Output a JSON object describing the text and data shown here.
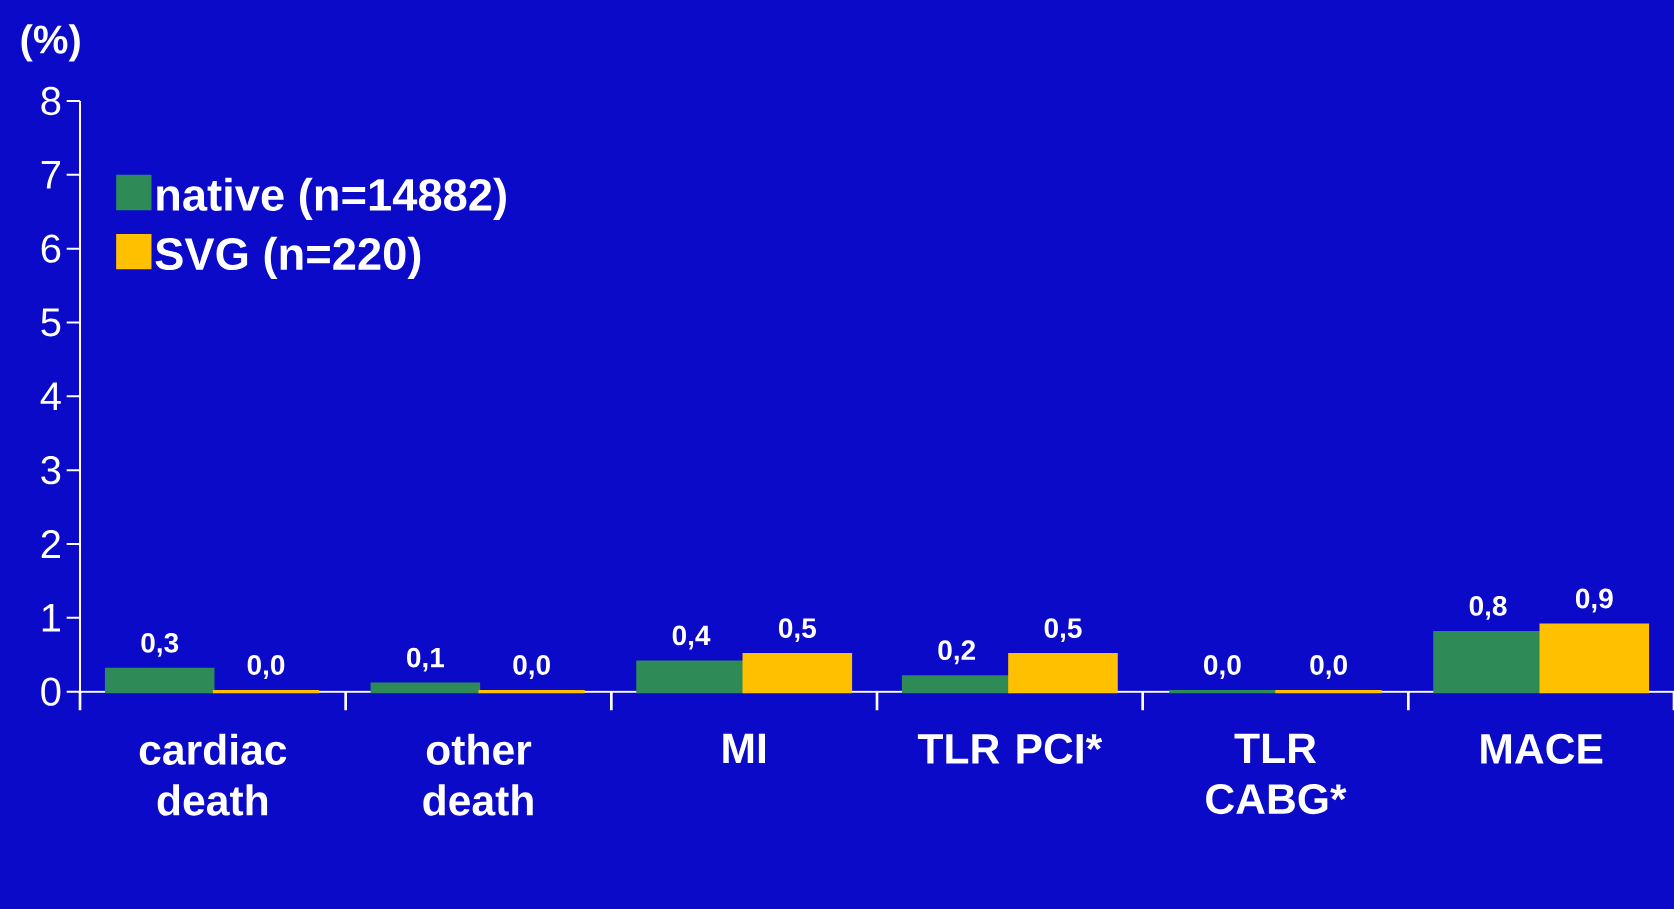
{
  "chart_data": {
    "type": "bar",
    "ylabel": "(%)",
    "categories": [
      "cardiac death",
      "other death",
      "MI",
      "TLR PCI*",
      "TLR CABG*",
      "MACE"
    ],
    "series": [
      {
        "name": "native (n=14882)",
        "color": "#2e8b57",
        "values": [
          0.3,
          0.1,
          0.4,
          0.2,
          0.0,
          0.8
        ],
        "value_labels": [
          "0,3",
          "0,1",
          "0,4",
          "0,2",
          "0,0",
          "0,8"
        ]
      },
      {
        "name": "SVG (n=220)",
        "color": "#ffc000",
        "values": [
          0.0,
          0.0,
          0.5,
          0.5,
          0.0,
          0.9
        ],
        "value_labels": [
          "0,0",
          "0,0",
          "0,5",
          "0,5",
          "0,0",
          "0,9"
        ]
      }
    ],
    "ylim": [
      0,
      8
    ],
    "yticks": [
      0,
      1,
      2,
      3,
      4,
      5,
      6,
      7,
      8
    ],
    "legend": "top left"
  }
}
